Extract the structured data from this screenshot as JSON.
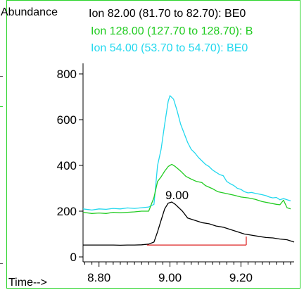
{
  "chart_data": {
    "type": "line",
    "ylabel": "Abundance",
    "xlabel": "Time-->",
    "xlim": [
      8.755,
      9.35
    ],
    "ylim": [
      0,
      900
    ],
    "x_ticks": [
      8.8,
      9.0,
      9.2
    ],
    "x_tick_labels": [
      "8.80",
      "9.00",
      "9.20"
    ],
    "y_ticks": [
      0,
      200,
      400,
      600,
      800
    ],
    "y_tick_labels": [
      "0",
      "200",
      "400",
      "600",
      "800"
    ],
    "legend": [
      {
        "text": "Ion  82.00 (81.70 to 82.70): BE0",
        "color": "#000000"
      },
      {
        "text": "Ion 128.00 (127.70 to 128.70): B",
        "color": "#22cc22"
      },
      {
        "text": "Ion  54.00 (53.70 to 54.70): BE0",
        "color": "#22d8ee"
      }
    ],
    "peak_label": {
      "text": "9.00",
      "x": 9.0
    },
    "baseline": {
      "x1": 8.935,
      "x2": 9.215,
      "y": 52,
      "color": "#dd2222"
    },
    "series": [
      {
        "color": "#22d8ee",
        "points": [
          [
            8.755,
            210
          ],
          [
            8.78,
            205
          ],
          [
            8.8,
            210
          ],
          [
            8.82,
            208
          ],
          [
            8.84,
            212
          ],
          [
            8.86,
            210
          ],
          [
            8.88,
            214
          ],
          [
            8.9,
            212
          ],
          [
            8.92,
            215
          ],
          [
            8.94,
            218
          ],
          [
            8.955,
            230
          ],
          [
            8.965,
            400
          ],
          [
            8.975,
            470
          ],
          [
            8.985,
            580
          ],
          [
            8.995,
            680
          ],
          [
            9.0,
            705
          ],
          [
            9.01,
            690
          ],
          [
            9.02,
            640
          ],
          [
            9.03,
            580
          ],
          [
            9.04,
            540
          ],
          [
            9.05,
            500
          ],
          [
            9.06,
            470
          ],
          [
            9.07,
            455
          ],
          [
            9.08,
            435
          ],
          [
            9.09,
            420
          ],
          [
            9.1,
            405
          ],
          [
            9.11,
            395
          ],
          [
            9.12,
            380
          ],
          [
            9.13,
            370
          ],
          [
            9.14,
            360
          ],
          [
            9.15,
            355
          ],
          [
            9.16,
            330
          ],
          [
            9.17,
            320
          ],
          [
            9.18,
            312
          ],
          [
            9.19,
            300
          ],
          [
            9.2,
            295
          ],
          [
            9.21,
            285
          ],
          [
            9.22,
            280
          ],
          [
            9.23,
            282
          ],
          [
            9.24,
            278
          ],
          [
            9.25,
            275
          ],
          [
            9.26,
            272
          ],
          [
            9.27,
            268
          ],
          [
            9.28,
            262
          ],
          [
            9.29,
            258
          ],
          [
            9.3,
            260
          ],
          [
            9.31,
            250
          ],
          [
            9.32,
            255
          ],
          [
            9.33,
            250
          ],
          [
            9.34,
            245
          ]
        ]
      },
      {
        "color": "#22cc22",
        "points": [
          [
            8.755,
            195
          ],
          [
            8.78,
            190
          ],
          [
            8.8,
            192
          ],
          [
            8.82,
            190
          ],
          [
            8.84,
            195
          ],
          [
            8.86,
            193
          ],
          [
            8.88,
            195
          ],
          [
            8.9,
            197
          ],
          [
            8.92,
            200
          ],
          [
            8.94,
            200
          ],
          [
            8.955,
            260
          ],
          [
            8.965,
            330
          ],
          [
            8.975,
            350
          ],
          [
            8.985,
            375
          ],
          [
            8.995,
            395
          ],
          [
            9.005,
            405
          ],
          [
            9.015,
            395
          ],
          [
            9.03,
            375
          ],
          [
            9.045,
            352
          ],
          [
            9.06,
            340
          ],
          [
            9.075,
            330
          ],
          [
            9.09,
            325
          ],
          [
            9.1,
            312
          ],
          [
            9.12,
            298
          ],
          [
            9.135,
            285
          ],
          [
            9.15,
            280
          ],
          [
            9.165,
            275
          ],
          [
            9.18,
            270
          ],
          [
            9.2,
            262
          ],
          [
            9.22,
            258
          ],
          [
            9.24,
            252
          ],
          [
            9.26,
            242
          ],
          [
            9.28,
            236
          ],
          [
            9.3,
            230
          ],
          [
            9.31,
            228
          ],
          [
            9.32,
            248
          ],
          [
            9.33,
            215
          ],
          [
            9.34,
            210
          ]
        ]
      },
      {
        "color": "#000000",
        "points": [
          [
            8.755,
            52
          ],
          [
            8.78,
            52
          ],
          [
            8.8,
            52
          ],
          [
            8.82,
            52
          ],
          [
            8.84,
            52
          ],
          [
            8.86,
            51
          ],
          [
            8.88,
            52
          ],
          [
            8.9,
            52
          ],
          [
            8.92,
            53
          ],
          [
            8.94,
            56
          ],
          [
            8.955,
            65
          ],
          [
            8.965,
            110
          ],
          [
            8.975,
            160
          ],
          [
            8.985,
            210
          ],
          [
            8.995,
            235
          ],
          [
            9.005,
            240
          ],
          [
            9.015,
            230
          ],
          [
            9.025,
            215
          ],
          [
            9.035,
            200
          ],
          [
            9.05,
            170
          ],
          [
            9.07,
            160
          ],
          [
            9.09,
            150
          ],
          [
            9.11,
            145
          ],
          [
            9.13,
            135
          ],
          [
            9.15,
            130
          ],
          [
            9.17,
            120
          ],
          [
            9.19,
            110
          ],
          [
            9.21,
            100
          ],
          [
            9.23,
            95
          ],
          [
            9.25,
            90
          ],
          [
            9.27,
            85
          ],
          [
            9.29,
            83
          ],
          [
            9.31,
            78
          ],
          [
            9.33,
            75
          ],
          [
            9.35,
            65
          ]
        ]
      }
    ]
  }
}
